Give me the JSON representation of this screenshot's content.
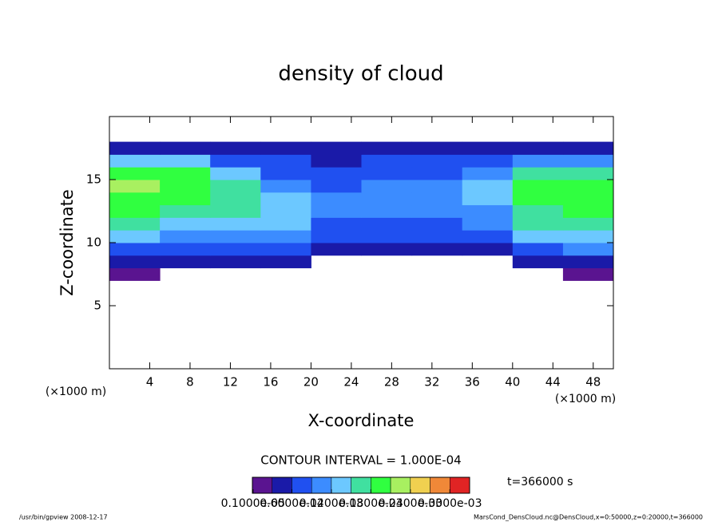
{
  "chart_data": {
    "type": "heatmap",
    "title": "density of cloud",
    "xlabel": "X-coordinate",
    "ylabel": "Z-coordinate",
    "x_unit_label": "(×1000 m)",
    "y_unit_label": "(×1000 m)",
    "xlim": [
      0,
      50
    ],
    "ylim": [
      0,
      20
    ],
    "xticks": [
      4,
      8,
      12,
      16,
      20,
      24,
      28,
      32,
      36,
      40,
      44,
      48
    ],
    "yticks": [
      5,
      10,
      15
    ],
    "x_edges": [
      0,
      5,
      10,
      15,
      20,
      25,
      30,
      35,
      40,
      45,
      50
    ],
    "z_edges": [
      7,
      8,
      9,
      10,
      11,
      12,
      13,
      14,
      15,
      16,
      17,
      18
    ],
    "values": [
      [
        2e-05,
        null,
        null,
        null,
        null,
        null,
        null,
        null,
        null,
        2e-05
      ],
      [
        5e-05,
        4e-05,
        4e-05,
        3e-05,
        null,
        null,
        null,
        null,
        3e-05,
        5e-05
      ],
      [
        8e-05,
        8e-05,
        7e-05,
        6e-05,
        4e-05,
        4e-05,
        4e-05,
        5e-05,
        7e-05,
        9e-05
      ],
      [
        0.00012,
        0.00011,
        0.0001,
        0.0001,
        6e-05,
        6e-05,
        6e-05,
        8e-05,
        0.00012,
        0.00013
      ],
      [
        0.00015,
        0.00014,
        0.00013,
        0.00012,
        8e-05,
        8e-05,
        8e-05,
        0.0001,
        0.00015,
        0.00016
      ],
      [
        0.00018,
        0.00016,
        0.00015,
        0.00014,
        9e-05,
        0.0001,
        0.0001,
        0.00011,
        0.00017,
        0.00018
      ],
      [
        0.0002,
        0.00018,
        0.00016,
        0.00013,
        9e-05,
        0.00011,
        0.0001,
        0.00012,
        0.00019,
        0.0002
      ],
      [
        0.00021,
        0.00019,
        0.00015,
        0.0001,
        8e-05,
        0.0001,
        9e-05,
        0.00012,
        0.0002,
        0.00019
      ],
      [
        0.0002,
        0.00018,
        0.00012,
        8e-05,
        7e-05,
        8e-05,
        8e-05,
        0.0001,
        0.00017,
        0.00016
      ],
      [
        0.00014,
        0.00012,
        8e-05,
        6e-05,
        5e-05,
        6e-05,
        6e-05,
        7e-05,
        0.0001,
        0.00011
      ],
      [
        4e-05,
        4e-05,
        3e-05,
        3e-05,
        3e-05,
        3e-05,
        3e-05,
        3e-05,
        4e-05,
        4e-05
      ]
    ],
    "levels": [
      0,
      3e-05,
      6e-05,
      9e-05,
      0.00012,
      0.00015,
      0.00018,
      0.00021,
      0.00024,
      0.00027,
      0.0003,
      0.00033
    ],
    "colors": [
      "#5a1490",
      "#1a1aa8",
      "#2050f0",
      "#3c8cff",
      "#6cc8ff",
      "#40e0a0",
      "#30ff40",
      "#a8f060",
      "#f0d050",
      "#f08838",
      "#e02424"
    ],
    "colorbar_ticks": [
      {
        "value": 1e-06,
        "label": "0.1000e-05"
      },
      {
        "value": 6e-05,
        "label": "0.6000e-04"
      },
      {
        "value": 0.00012,
        "label": "0.1200e-03"
      },
      {
        "value": 0.00018,
        "label": "0.1800e-03"
      },
      {
        "value": 0.00024,
        "label": "0.2400e-03"
      },
      {
        "value": 0.0003,
        "label": "0.3000e-03"
      }
    ],
    "contour_interval": "CONTOUR INTERVAL = 1.000E-04",
    "time_label": "t=366000 s",
    "footer_left": "/usr/bin/gpview   2008-12-17",
    "footer_right": "MarsCond_DensCloud.nc@DensCloud,x=0:50000,z=0:20000,t=366000"
  }
}
